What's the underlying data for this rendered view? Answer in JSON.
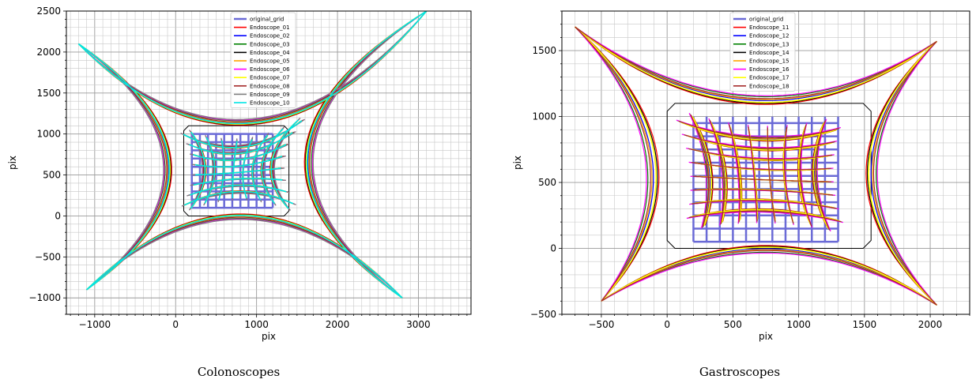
{
  "chart_data": [
    {
      "type": "line",
      "caption": "Colonoscopes",
      "xlabel": "pix",
      "ylabel": "pix",
      "xlim": [
        -1350,
        3650
      ],
      "ylim": [
        -1200,
        2500
      ],
      "xticks": [
        -1000,
        0,
        1000,
        2000,
        3000
      ],
      "yticks": [
        -1000,
        -500,
        0,
        500,
        1000,
        1500,
        2000,
        2500
      ],
      "x_minor_step": 100,
      "y_minor_step": 100,
      "grid": true,
      "legend_position": "top-center",
      "legend": [
        {
          "name": "original_grid",
          "color": "#6a6ad6"
        },
        {
          "name": "Endoscope_01",
          "color": "#ff0000"
        },
        {
          "name": "Endoscope_02",
          "color": "#0000ff"
        },
        {
          "name": "Endoscope_03",
          "color": "#008000"
        },
        {
          "name": "Endoscope_04",
          "color": "#000000"
        },
        {
          "name": "Endoscope_05",
          "color": "#ffa500"
        },
        {
          "name": "Endoscope_06",
          "color": "#ff00ff"
        },
        {
          "name": "Endoscope_07",
          "color": "#ffff00"
        },
        {
          "name": "Endoscope_08",
          "color": "#a52a2a"
        },
        {
          "name": "Endoscope_09",
          "color": "#808080"
        },
        {
          "name": "Endoscope_10",
          "color": "#00e5e5"
        }
      ],
      "original_grid": {
        "x": [
          200,
          1200
        ],
        "y": [
          100,
          1000
        ],
        "step_x": 100,
        "step_y": 100
      },
      "center": [
        750,
        550
      ],
      "corners": {
        "top_left": [
          -1200,
          2100
        ],
        "top_right": [
          3100,
          2500
        ],
        "bottom_right": [
          2800,
          -1000
        ],
        "bottom_left": [
          -1100,
          -900
        ]
      },
      "edge_extremes": {
        "top_y": 1150,
        "bottom_y": -10,
        "left_x": -100,
        "right_x": 1650
      },
      "black_frame": {
        "x": [
          100,
          1400
        ],
        "y": [
          0,
          1100
        ]
      }
    },
    {
      "type": "line",
      "caption": "Gastroscopes",
      "xlabel": "pix",
      "ylabel": "pix",
      "xlim": [
        -800,
        2300
      ],
      "ylim": [
        -500,
        1800
      ],
      "xticks": [
        -500,
        0,
        500,
        1000,
        1500,
        2000
      ],
      "yticks": [
        -500,
        0,
        500,
        1000,
        1500
      ],
      "x_minor_step": 100,
      "y_minor_step": 100,
      "grid": true,
      "legend_position": "top-center",
      "legend": [
        {
          "name": "original_grid",
          "color": "#6a6ad6"
        },
        {
          "name": "Endoscope_11",
          "color": "#ff0000"
        },
        {
          "name": "Endoscope_12",
          "color": "#0000ff"
        },
        {
          "name": "Endoscope_13",
          "color": "#008000"
        },
        {
          "name": "Endoscope_14",
          "color": "#000000"
        },
        {
          "name": "Endoscope_15",
          "color": "#ffa500"
        },
        {
          "name": "Endoscope_16",
          "color": "#ff00ff"
        },
        {
          "name": "Endoscope_17",
          "color": "#ffff00"
        },
        {
          "name": "Endoscope_18",
          "color": "#a52a2a"
        }
      ],
      "original_grid": {
        "x": [
          200,
          1300
        ],
        "y": [
          50,
          1000
        ],
        "step_x": 100,
        "step_y": 100
      },
      "center": [
        770,
        520
      ],
      "corners": {
        "top_left": [
          -700,
          1680
        ],
        "top_right": [
          2050,
          1570
        ],
        "bottom_right": [
          2050,
          -430
        ],
        "bottom_left": [
          -500,
          -400
        ]
      },
      "edge_extremes": {
        "top_y": 1130,
        "bottom_y": -10,
        "left_x": -120,
        "right_x": 1560
      },
      "black_frame": {
        "x": [
          0,
          1550
        ],
        "y": [
          0,
          1100
        ]
      }
    }
  ]
}
